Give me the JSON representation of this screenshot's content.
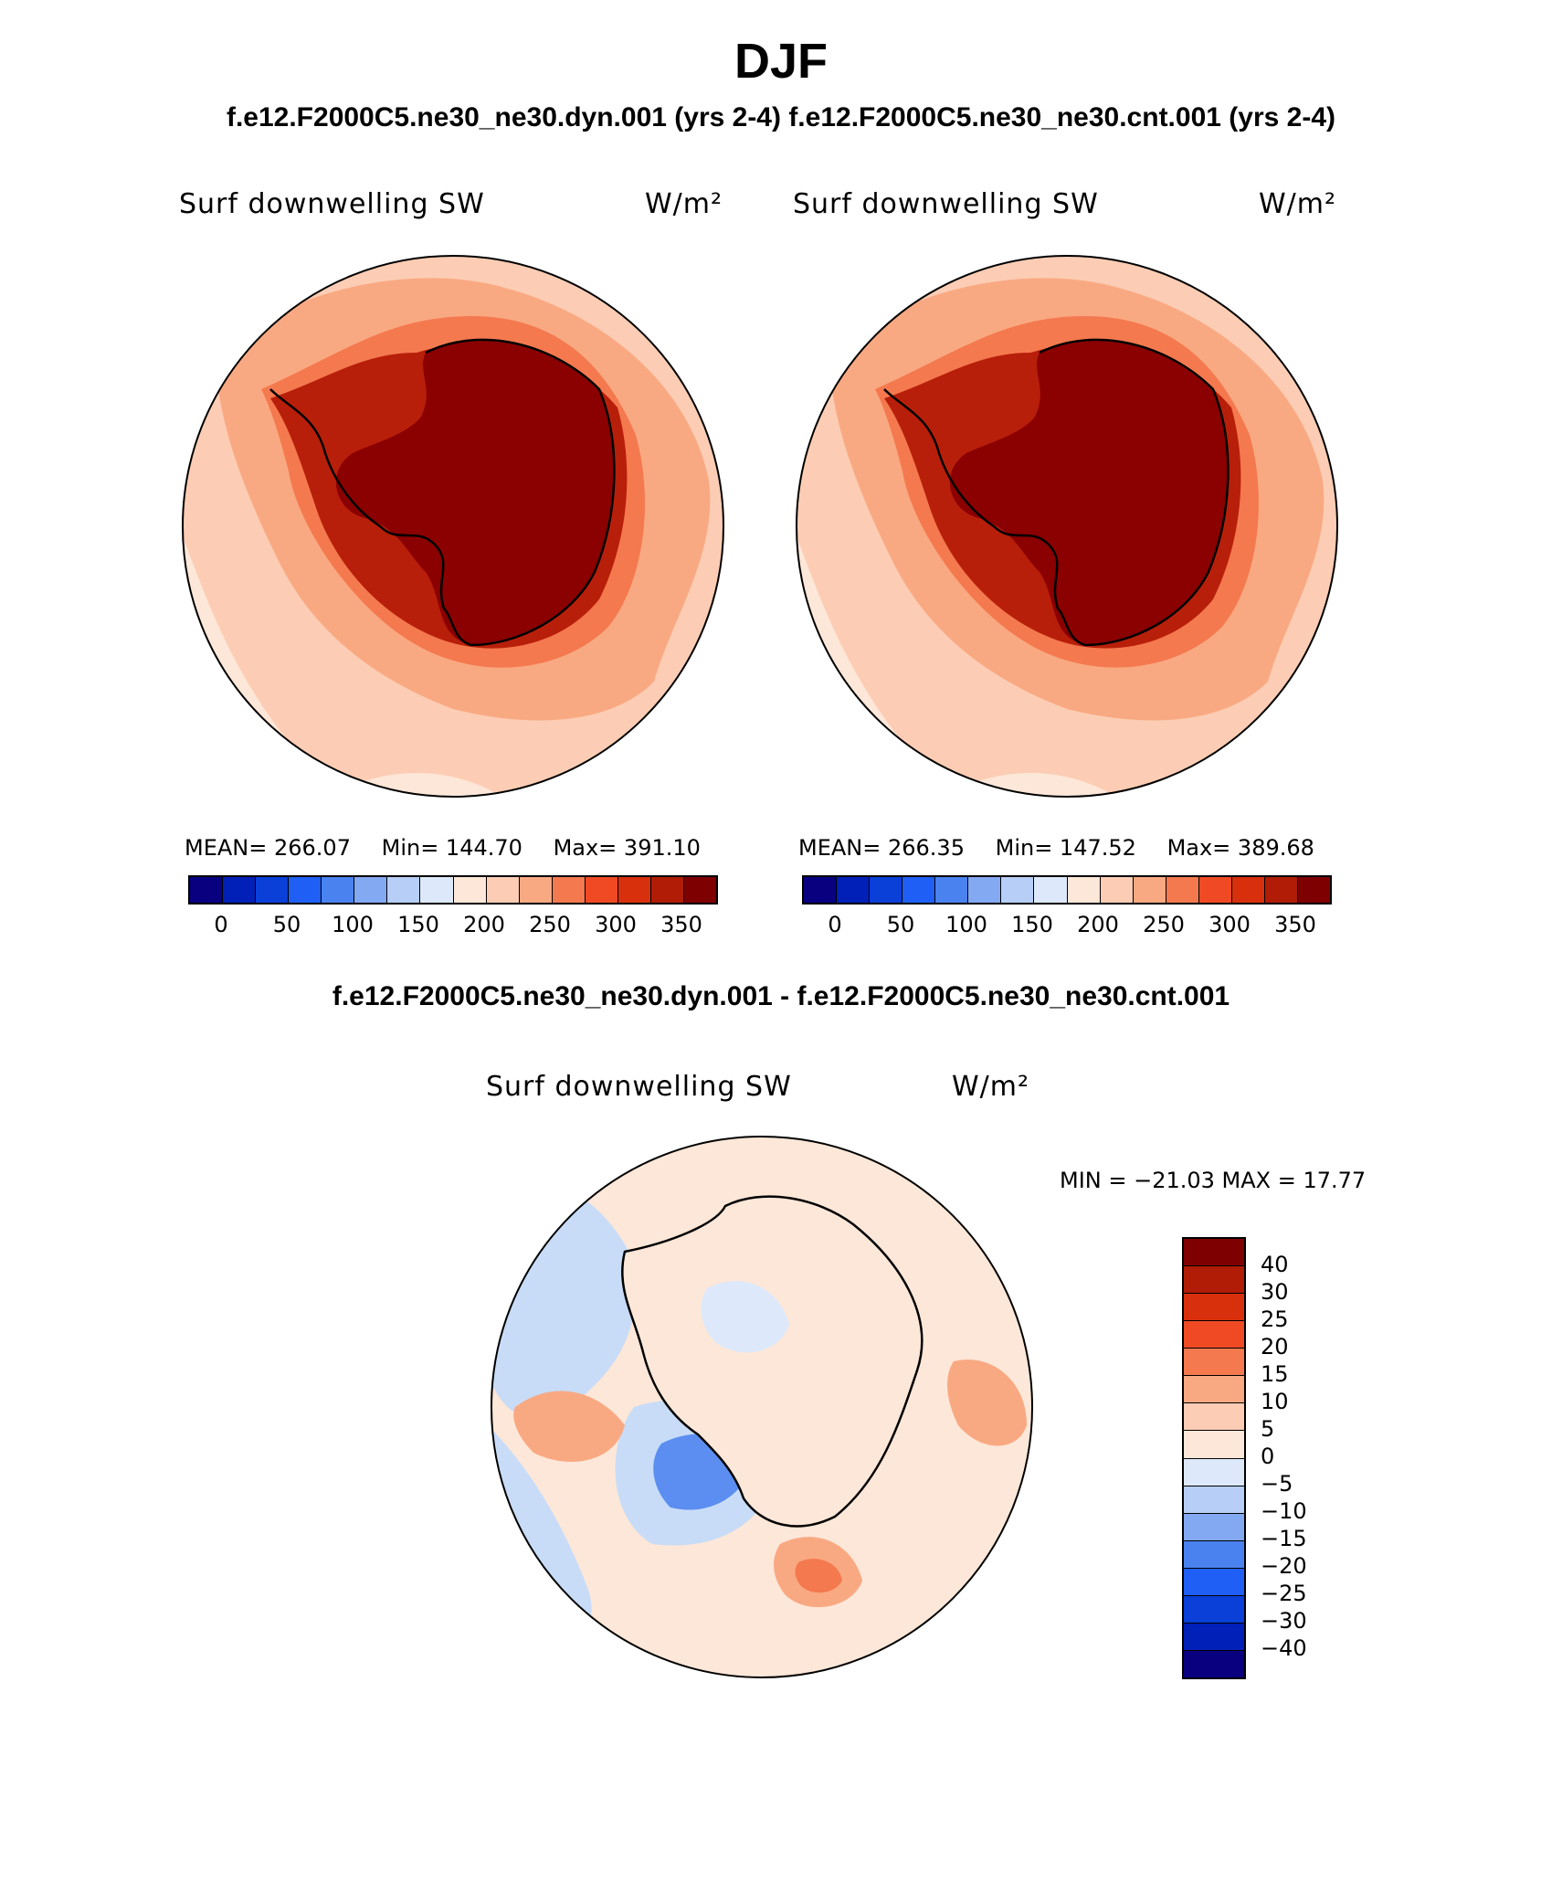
{
  "title": "DJF",
  "subtitle": "f.e12.F2000C5.ne30_ne30.dyn.001 (yrs 2-4)  f.e12.F2000C5.ne30_ne30.cnt.001 (yrs 2-4)",
  "diff_title": "f.e12.F2000C5.ne30_ne30.dyn.001 - f.e12.F2000C5.ne30_ne30.cnt.001",
  "panels": [
    {
      "variable": "Surf downwelling SW",
      "units": "W/m²",
      "mean_label": "MEAN= 266.07",
      "min_label": "Min= 144.70",
      "max_label": "Max= 391.10"
    },
    {
      "variable": "Surf downwelling SW",
      "units": "W/m²",
      "mean_label": "MEAN= 266.35",
      "min_label": "Min= 147.52",
      "max_label": "Max= 389.68"
    }
  ],
  "diff_panel": {
    "variable": "Surf downwelling SW",
    "units": "W/m²",
    "minmax_label": "MIN = −21.03 MAX =   17.77"
  },
  "colorbar_levels": [
    "0",
    "50",
    "100",
    "150",
    "200",
    "250",
    "300",
    "350"
  ],
  "diff_levels": [
    "40",
    "30",
    "25",
    "20",
    "15",
    "10",
    "5",
    "0",
    "−5",
    "−10",
    "−15",
    "−20",
    "−25",
    "−30",
    "−40"
  ],
  "colors": {
    "abs_palette": [
      "#08007f",
      "#0020b8",
      "#0a3fd8",
      "#1f5ff5",
      "#4a82f0",
      "#84a9f3",
      "#b7cff7",
      "#dde9fb",
      "#fde7d8",
      "#fccdb4",
      "#f9a982",
      "#f4794f",
      "#ef4a24",
      "#d8300c",
      "#b01c05",
      "#7f0000"
    ],
    "diff_palette": [
      "#7f0000",
      "#b01c05",
      "#d8300c",
      "#ef4a24",
      "#f4794f",
      "#f9a982",
      "#fccdb4",
      "#fde7d8",
      "#dde9fb",
      "#b7cff7",
      "#84a9f3",
      "#4a82f0",
      "#1f5ff5",
      "#0a3fd8",
      "#0020b8",
      "#08007f"
    ],
    "continent_interior": "#8b0000",
    "continent_rim": "#b81f0a",
    "coastal_band": "#f08060",
    "mid_ocean": "#f7a988",
    "outer_ocean": "#fcd5c0",
    "diff_ocean": "#fde7d8",
    "diff_negative": "#c8dcf7",
    "diff_strong_negative": "#5b8ef0",
    "diff_positive": "#f9a982"
  }
}
